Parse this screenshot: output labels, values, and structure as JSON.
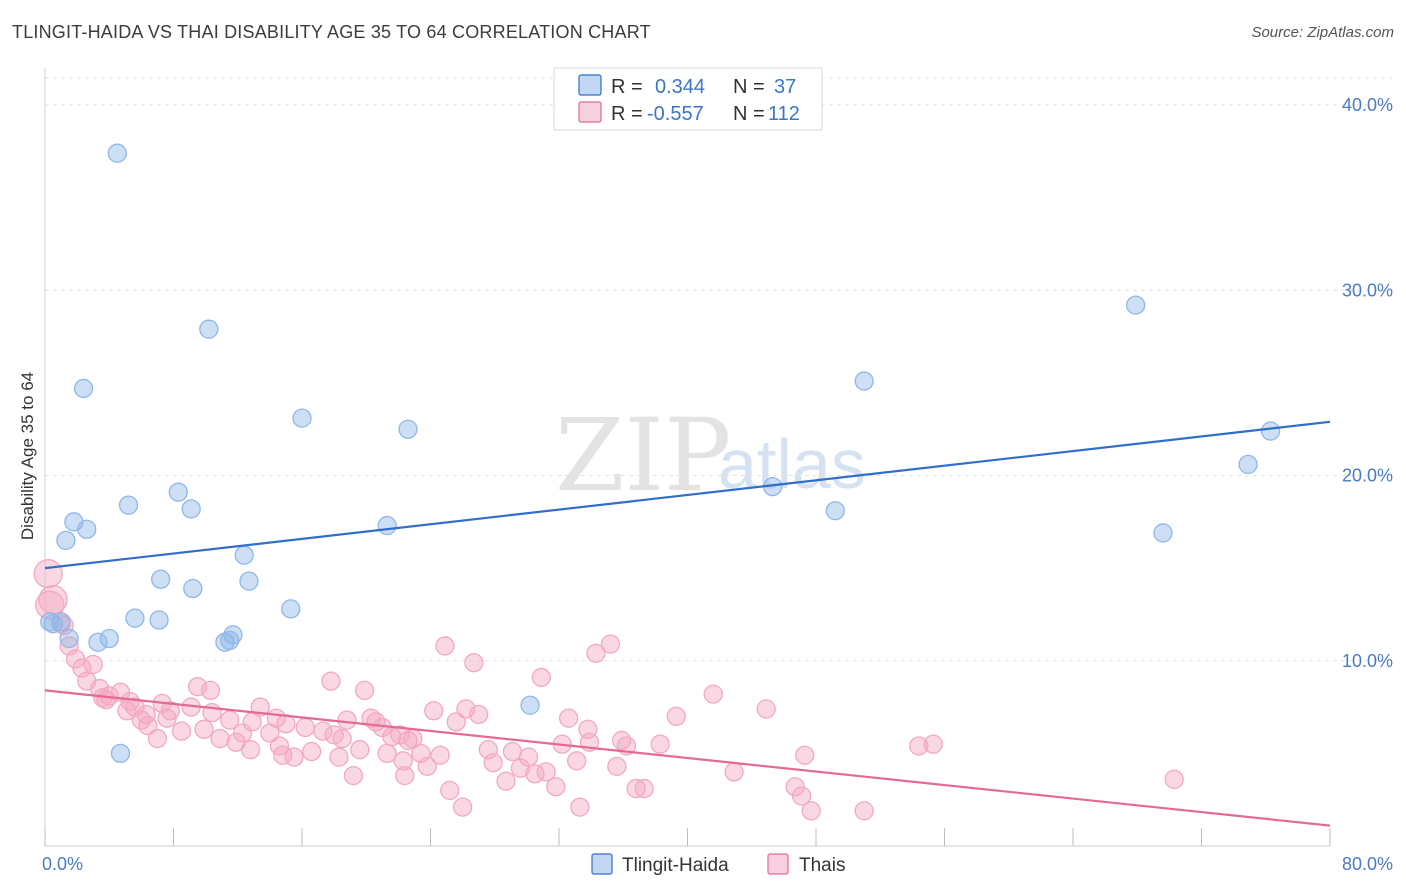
{
  "header": {
    "title": "TLINGIT-HAIDA VS THAI DISABILITY AGE 35 TO 64 CORRELATION CHART",
    "source": "Source: ZipAtlas.com"
  },
  "watermark": {
    "zip": "ZIP",
    "atlas": "atlas"
  },
  "chart_data": {
    "type": "scatter",
    "title": "TLINGIT-HAIDA VS THAI DISABILITY AGE 35 TO 64 CORRELATION CHART",
    "xlabel": "",
    "ylabel": "Disability Age 35 to 64",
    "xlim": [
      0,
      80
    ],
    "ylim": [
      0,
      42
    ],
    "x_tick_labels": {
      "min": "0.0%",
      "max": "80.0%"
    },
    "y_ticks": [
      10,
      20,
      30,
      40
    ],
    "y_tick_labels": [
      "10.0%",
      "20.0%",
      "30.0%",
      "40.0%"
    ],
    "grid": true,
    "legend_position": "top-center",
    "legend": [
      {
        "name": "Tlingit-Haida",
        "r_label": "R =",
        "r_value": "0.344",
        "n_label": "N =",
        "n_value": "37"
      },
      {
        "name": "Thais",
        "r_label": "R =",
        "r_value": "-0.557",
        "n_label": "N =",
        "n_value": "112"
      }
    ],
    "series": [
      {
        "name": "Tlingit-Haida",
        "color": "#8fb7e8",
        "line_color": "#2f6fcb",
        "trend": [
          [
            0,
            15.0
          ],
          [
            80,
            22.9
          ]
        ],
        "points": [
          [
            4.5,
            37.4
          ],
          [
            10.2,
            27.9
          ],
          [
            2.4,
            24.7
          ],
          [
            16.0,
            23.1
          ],
          [
            22.6,
            22.5
          ],
          [
            8.3,
            19.1
          ],
          [
            9.1,
            18.2
          ],
          [
            5.2,
            18.4
          ],
          [
            1.8,
            17.5
          ],
          [
            2.6,
            17.1
          ],
          [
            1.3,
            16.5
          ],
          [
            12.4,
            15.7
          ],
          [
            21.3,
            17.3
          ],
          [
            7.2,
            14.4
          ],
          [
            12.7,
            14.3
          ],
          [
            9.2,
            13.9
          ],
          [
            15.3,
            12.8
          ],
          [
            5.6,
            12.3
          ],
          [
            7.1,
            12.2
          ],
          [
            0.3,
            12.1
          ],
          [
            1.0,
            12.1
          ],
          [
            1.5,
            11.2
          ],
          [
            4.0,
            11.2
          ],
          [
            3.3,
            11.0
          ],
          [
            11.2,
            11.0
          ],
          [
            11.5,
            11.1
          ],
          [
            11.7,
            11.4
          ],
          [
            30.2,
            7.6
          ],
          [
            4.7,
            5.0
          ],
          [
            45.3,
            19.4
          ],
          [
            49.2,
            18.1
          ],
          [
            51.0,
            25.1
          ],
          [
            67.9,
            29.2
          ],
          [
            69.6,
            16.9
          ],
          [
            74.9,
            20.6
          ],
          [
            76.3,
            22.4
          ],
          [
            0.5,
            12.0
          ]
        ]
      },
      {
        "name": "Thais",
        "color": "#f3a8c2",
        "line_color": "#e46a95",
        "trend": [
          [
            0,
            8.4
          ],
          [
            80,
            1.1
          ]
        ],
        "points": [
          [
            0.2,
            14.7
          ],
          [
            0.5,
            13.3
          ],
          [
            1.0,
            12.0
          ],
          [
            1.5,
            10.8
          ],
          [
            1.9,
            10.1
          ],
          [
            2.3,
            9.6
          ],
          [
            3.0,
            9.8
          ],
          [
            2.6,
            8.9
          ],
          [
            3.4,
            8.5
          ],
          [
            3.6,
            8.0
          ],
          [
            4.0,
            8.1
          ],
          [
            4.7,
            8.3
          ],
          [
            3.8,
            7.9
          ],
          [
            5.3,
            7.8
          ],
          [
            5.6,
            7.5
          ],
          [
            6.3,
            7.1
          ],
          [
            5.1,
            7.3
          ],
          [
            6.0,
            6.8
          ],
          [
            6.4,
            6.5
          ],
          [
            7.3,
            7.7
          ],
          [
            7.8,
            7.3
          ],
          [
            7.6,
            6.9
          ],
          [
            7.0,
            5.8
          ],
          [
            8.5,
            6.2
          ],
          [
            9.1,
            7.5
          ],
          [
            9.5,
            8.6
          ],
          [
            10.3,
            8.4
          ],
          [
            10.4,
            7.2
          ],
          [
            9.9,
            6.3
          ],
          [
            10.9,
            5.8
          ],
          [
            11.5,
            6.8
          ],
          [
            12.3,
            6.1
          ],
          [
            11.9,
            5.6
          ],
          [
            12.9,
            6.7
          ],
          [
            12.8,
            5.2
          ],
          [
            13.4,
            7.5
          ],
          [
            14.0,
            6.1
          ],
          [
            14.4,
            6.9
          ],
          [
            14.6,
            5.4
          ],
          [
            15.0,
            6.6
          ],
          [
            15.5,
            4.8
          ],
          [
            16.2,
            6.4
          ],
          [
            16.6,
            5.1
          ],
          [
            17.3,
            6.2
          ],
          [
            17.8,
            8.9
          ],
          [
            18.0,
            6.0
          ],
          [
            18.3,
            4.8
          ],
          [
            18.8,
            6.8
          ],
          [
            19.2,
            3.8
          ],
          [
            19.6,
            5.2
          ],
          [
            19.9,
            8.4
          ],
          [
            20.3,
            6.9
          ],
          [
            20.6,
            6.7
          ],
          [
            21.0,
            6.4
          ],
          [
            21.3,
            5.0
          ],
          [
            21.6,
            5.9
          ],
          [
            22.1,
            6.0
          ],
          [
            22.3,
            4.6
          ],
          [
            22.6,
            5.7
          ],
          [
            22.9,
            5.8
          ],
          [
            23.4,
            5.0
          ],
          [
            23.8,
            4.3
          ],
          [
            24.2,
            7.3
          ],
          [
            24.6,
            4.9
          ],
          [
            24.9,
            10.8
          ],
          [
            25.2,
            3.0
          ],
          [
            25.6,
            6.7
          ],
          [
            26.0,
            2.1
          ],
          [
            26.7,
            9.9
          ],
          [
            27.0,
            7.1
          ],
          [
            27.6,
            5.2
          ],
          [
            27.9,
            4.5
          ],
          [
            28.7,
            3.5
          ],
          [
            29.1,
            5.1
          ],
          [
            29.6,
            4.2
          ],
          [
            30.1,
            4.8
          ],
          [
            30.5,
            3.9
          ],
          [
            30.9,
            9.1
          ],
          [
            31.2,
            4.0
          ],
          [
            32.2,
            5.5
          ],
          [
            32.6,
            6.9
          ],
          [
            33.1,
            4.6
          ],
          [
            33.3,
            2.1
          ],
          [
            33.8,
            6.3
          ],
          [
            33.9,
            5.6
          ],
          [
            34.3,
            10.4
          ],
          [
            35.2,
            10.9
          ],
          [
            35.6,
            4.3
          ],
          [
            36.2,
            5.4
          ],
          [
            36.8,
            3.1
          ],
          [
            37.3,
            3.1
          ],
          [
            38.3,
            5.5
          ],
          [
            39.3,
            7.0
          ],
          [
            41.6,
            8.2
          ],
          [
            42.9,
            4.0
          ],
          [
            44.9,
            7.4
          ],
          [
            46.7,
            3.2
          ],
          [
            47.1,
            2.7
          ],
          [
            47.3,
            4.9
          ],
          [
            47.7,
            1.9
          ],
          [
            51.0,
            1.9
          ],
          [
            54.4,
            5.4
          ],
          [
            55.3,
            5.5
          ],
          [
            70.3,
            3.6
          ],
          [
            0.3,
            13.0
          ],
          [
            1.2,
            11.9
          ],
          [
            14.8,
            4.9
          ],
          [
            18.5,
            5.8
          ],
          [
            22.4,
            3.8
          ],
          [
            26.2,
            7.4
          ],
          [
            31.8,
            3.2
          ],
          [
            35.9,
            5.7
          ]
        ]
      }
    ]
  }
}
